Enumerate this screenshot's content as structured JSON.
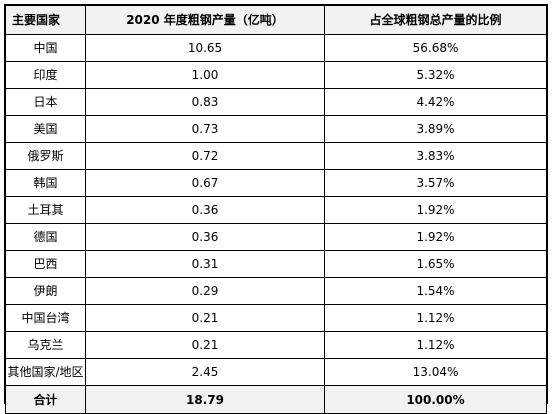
{
  "table": {
    "headers": [
      "主要国家",
      "2020 年度粗钢产量（亿吨）",
      "占全球粗钢总产量的比例"
    ],
    "rows": [
      [
        "中国",
        "10.65",
        "56.68%"
      ],
      [
        "印度",
        "1.00",
        "5.32%"
      ],
      [
        "日本",
        "0.83",
        "4.42%"
      ],
      [
        "美国",
        "0.73",
        "3.89%"
      ],
      [
        "俄罗斯",
        "0.72",
        "3.83%"
      ],
      [
        "韩国",
        "0.67",
        "3.57%"
      ],
      [
        "土耳其",
        "0.36",
        "1.92%"
      ],
      [
        "德国",
        "0.36",
        "1.92%"
      ],
      [
        "巴西",
        "0.31",
        "1.65%"
      ],
      [
        "伊朗",
        "0.29",
        "1.54%"
      ],
      [
        "中国台湾",
        "0.21",
        "1.12%"
      ],
      [
        "乌克兰",
        "0.21",
        "1.12%"
      ],
      [
        "其他国家/地区",
        "2.45",
        "13.04%"
      ]
    ],
    "total": [
      "合计",
      "18.79",
      "100.00%"
    ]
  }
}
